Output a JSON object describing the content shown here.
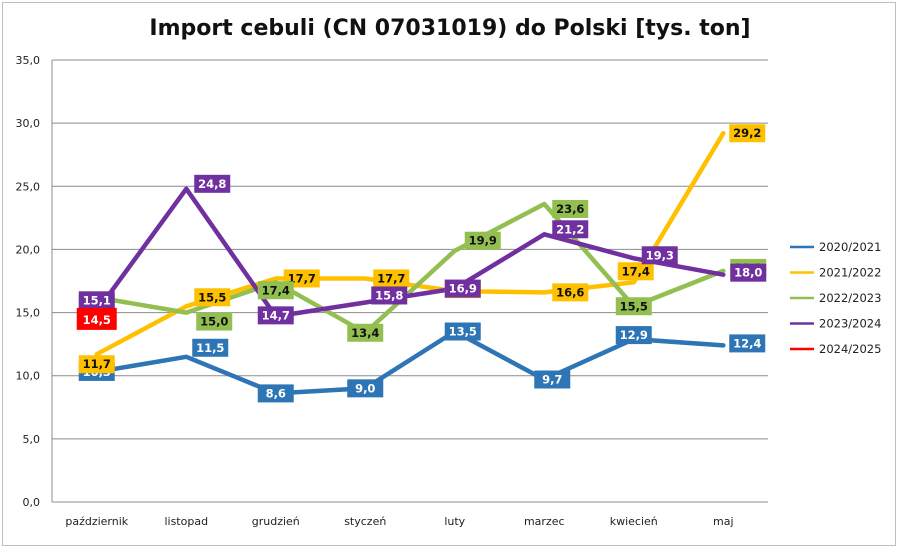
{
  "chart_data": {
    "type": "line",
    "title": "Import cebuli (CN 07031019)  do Polski [tys. ton]",
    "categories": [
      "październik",
      "listopad",
      "grudzień",
      "styczeń",
      "luty",
      "marzec",
      "kwiecień",
      "maj"
    ],
    "ylim": [
      0,
      35
    ],
    "yticks": [
      "0,0",
      "5,0",
      "10,0",
      "15,0",
      "20,0",
      "25,0",
      "30,0",
      "35,0"
    ],
    "grid": true,
    "legend_position": "right",
    "series": [
      {
        "name": "2020/2021",
        "color": "#2e75b6",
        "values": [
          10.3,
          11.5,
          8.6,
          9.0,
          13.5,
          9.7,
          12.9,
          12.4
        ],
        "labels": [
          "10,3",
          "11,5",
          "8,6",
          "9,0",
          "13,5",
          "9,7",
          "12,9",
          "12,4"
        ]
      },
      {
        "name": "2021/2022",
        "color": "#ffc000",
        "values": [
          11.7,
          15.5,
          17.7,
          17.7,
          16.7,
          16.6,
          17.4,
          29.2
        ],
        "labels": [
          "11,7",
          "15,5",
          "17,7",
          "17,7",
          "16,7",
          "16,6",
          "17,4",
          "29,2"
        ]
      },
      {
        "name": "2022/2023",
        "color": "#92bf50",
        "values": [
          16.2,
          15.0,
          17.4,
          13.4,
          19.9,
          23.6,
          15.5,
          18.3
        ],
        "labels": [
          "16,2",
          "15,0",
          "17,4",
          "13,4",
          "19,9",
          "23,6",
          "15,5",
          "18,3"
        ]
      },
      {
        "name": "2023/2024",
        "color": "#7030a0",
        "values": [
          15.1,
          24.8,
          14.7,
          15.8,
          16.9,
          21.2,
          19.3,
          18.0
        ],
        "labels": [
          "15,1",
          "24,8",
          "14,7",
          "15,8",
          "16,9",
          "21,2",
          "19,3",
          "18,0"
        ]
      },
      {
        "name": "2024/2025",
        "color": "#ff0000",
        "values": [
          14.5,
          null,
          null,
          null,
          null,
          null,
          null,
          null
        ],
        "labels": [
          "14,5",
          null,
          null,
          null,
          null,
          null,
          null,
          null
        ]
      }
    ]
  }
}
